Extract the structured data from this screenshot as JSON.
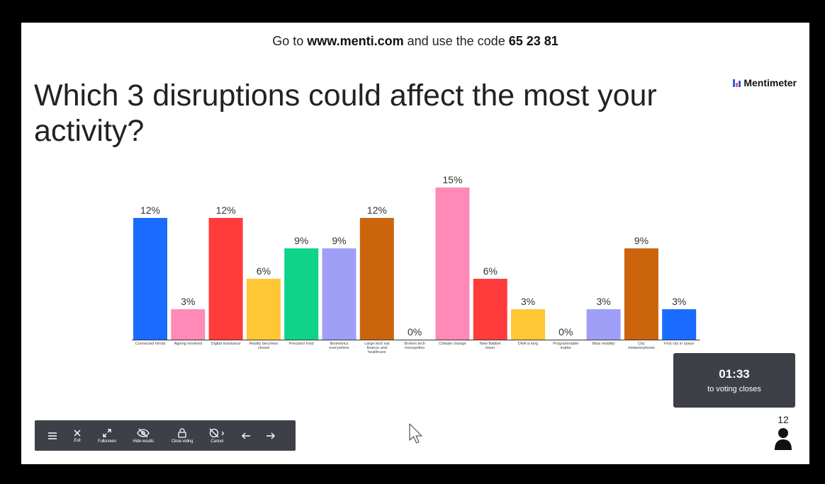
{
  "header": {
    "prefix": "Go to ",
    "url": "www.menti.com",
    "middle": " and use the code ",
    "code": "65 23 81"
  },
  "brand": {
    "name": "Mentimeter"
  },
  "question": "Which 3 disruptions could affect the most your activity?",
  "chart_data": {
    "type": "bar",
    "categories": [
      [
        "Connected minds"
      ],
      [
        "Ageing resolved"
      ],
      [
        "Digital resistance"
      ],
      [
        "Reality becomes",
        "closed"
      ],
      [
        "Precision food"
      ],
      [
        "Biometrics",
        "everywhere"
      ],
      [
        "Large tech eat",
        "finance and",
        "healthcare"
      ],
      [
        "Broken tech",
        "monopolies"
      ],
      [
        "Climate change"
      ],
      [
        "New Babbel",
        "tower"
      ],
      [
        "DNA is king"
      ],
      [
        "Programmable",
        "matter"
      ],
      [
        "Maxi mobility"
      ],
      [
        "City",
        "metamorphosis"
      ],
      [
        "First city in space"
      ]
    ],
    "values": [
      12,
      3,
      12,
      6,
      9,
      9,
      12,
      0,
      15,
      6,
      3,
      0,
      3,
      9,
      3
    ],
    "value_labels": [
      "12%",
      "3%",
      "12%",
      "6%",
      "9%",
      "9%",
      "12%",
      "0%",
      "15%",
      "6%",
      "3%",
      "0%",
      "3%",
      "9%",
      "3%"
    ],
    "colors": [
      "#196cff",
      "#ff8ab8",
      "#ff3b3b",
      "#ffc736",
      "#0fd389",
      "#9f9ff8",
      "#cb640c",
      "#196cff",
      "#ff8ab8",
      "#ff3b3b",
      "#ffc736",
      "#0fd389",
      "#9f9ff8",
      "#cb640c",
      "#196cff"
    ],
    "ylim": [
      0,
      15
    ],
    "grid": false,
    "title": "",
    "xlabel": "",
    "ylabel": ""
  },
  "timer": {
    "time": "01:33",
    "caption": "to voting closes"
  },
  "participants": "12",
  "toolbar": {
    "items": [
      {
        "icon": "menu-icon",
        "label": ""
      },
      {
        "icon": "close-icon",
        "label": "Exit"
      },
      {
        "icon": "expand-icon",
        "label": "Fullscreen"
      },
      {
        "icon": "eye-off-icon",
        "label": "Hide results"
      },
      {
        "icon": "lock-icon",
        "label": "Close voting"
      },
      {
        "icon": "timer-off-icon",
        "label": "Cancel"
      },
      {
        "icon": "arrow-left-icon",
        "label": ""
      },
      {
        "icon": "arrow-right-icon",
        "label": ""
      }
    ]
  }
}
